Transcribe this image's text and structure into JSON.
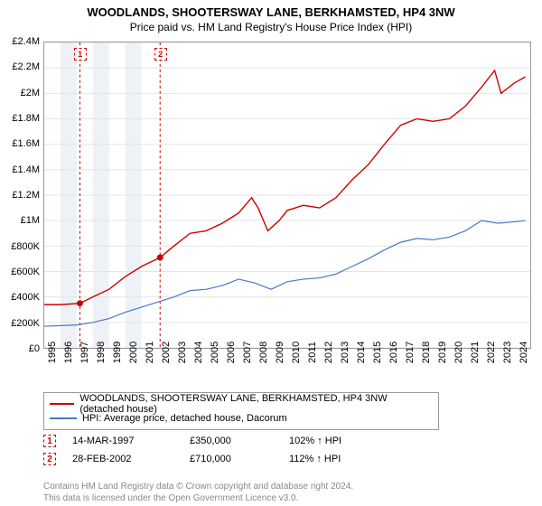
{
  "title": "WOODLANDS, SHOOTERSWAY LANE, BERKHAMSTED, HP4 3NW",
  "subtitle": "Price paid vs. HM Land Registry's House Price Index (HPI)",
  "chart": {
    "type": "line",
    "background_color": "#ffffff",
    "grid_color": "#e4e4e4",
    "axis_color": "#999999",
    "x_range": [
      1995,
      2025
    ],
    "y_range": [
      0,
      2400000
    ],
    "y_ticks": [
      0,
      200000,
      400000,
      600000,
      800000,
      1000000,
      1200000,
      1400000,
      1600000,
      1800000,
      2000000,
      2200000,
      2400000
    ],
    "y_tick_labels": [
      "£0",
      "£200K",
      "£400K",
      "£600K",
      "£800K",
      "£1M",
      "£1.2M",
      "£1.4M",
      "£1.6M",
      "£1.8M",
      "£2M",
      "£2.2M",
      "£2.4M"
    ],
    "x_ticks": [
      1995,
      1996,
      1997,
      1998,
      1999,
      2000,
      2001,
      2002,
      2003,
      2004,
      2005,
      2006,
      2007,
      2008,
      2009,
      2010,
      2011,
      2012,
      2013,
      2014,
      2015,
      2016,
      2017,
      2018,
      2019,
      2020,
      2021,
      2022,
      2023,
      2024
    ],
    "band_color": "#eef2f6",
    "bands": [
      [
        1996,
        1997
      ],
      [
        1998,
        1999
      ],
      [
        2000,
        2001
      ]
    ],
    "series": [
      {
        "name": "WOODLANDS, SHOOTERSWAY LANE, BERKHAMSTED, HP4 3NW (detached house)",
        "color": "#cc0000",
        "stroke_width": 1.4,
        "points": [
          [
            1995,
            340000
          ],
          [
            1996,
            340000
          ],
          [
            1997.2,
            350000
          ],
          [
            1998,
            400000
          ],
          [
            1999,
            460000
          ],
          [
            2000,
            560000
          ],
          [
            2001,
            640000
          ],
          [
            2002.15,
            710000
          ],
          [
            2003,
            800000
          ],
          [
            2004,
            900000
          ],
          [
            2005,
            920000
          ],
          [
            2006,
            980000
          ],
          [
            2007,
            1060000
          ],
          [
            2007.8,
            1180000
          ],
          [
            2008.2,
            1100000
          ],
          [
            2008.8,
            920000
          ],
          [
            2009.5,
            1000000
          ],
          [
            2010,
            1080000
          ],
          [
            2011,
            1120000
          ],
          [
            2012,
            1100000
          ],
          [
            2013,
            1180000
          ],
          [
            2014,
            1320000
          ],
          [
            2015,
            1440000
          ],
          [
            2016,
            1600000
          ],
          [
            2017,
            1750000
          ],
          [
            2018,
            1800000
          ],
          [
            2019,
            1780000
          ],
          [
            2020,
            1800000
          ],
          [
            2021,
            1900000
          ],
          [
            2022,
            2050000
          ],
          [
            2022.8,
            2180000
          ],
          [
            2023.2,
            2000000
          ],
          [
            2024,
            2080000
          ],
          [
            2024.7,
            2130000
          ]
        ]
      },
      {
        "name": "HPI: Average price, detached house, Dacorum",
        "color": "#4a76c6",
        "stroke_width": 1.2,
        "points": [
          [
            1995,
            170000
          ],
          [
            1996,
            175000
          ],
          [
            1997,
            180000
          ],
          [
            1998,
            200000
          ],
          [
            1999,
            230000
          ],
          [
            2000,
            280000
          ],
          [
            2001,
            320000
          ],
          [
            2002,
            360000
          ],
          [
            2003,
            400000
          ],
          [
            2004,
            450000
          ],
          [
            2005,
            460000
          ],
          [
            2006,
            490000
          ],
          [
            2007,
            540000
          ],
          [
            2008,
            510000
          ],
          [
            2009,
            460000
          ],
          [
            2010,
            520000
          ],
          [
            2011,
            540000
          ],
          [
            2012,
            550000
          ],
          [
            2013,
            580000
          ],
          [
            2014,
            640000
          ],
          [
            2015,
            700000
          ],
          [
            2016,
            770000
          ],
          [
            2017,
            830000
          ],
          [
            2018,
            860000
          ],
          [
            2019,
            850000
          ],
          [
            2020,
            870000
          ],
          [
            2021,
            920000
          ],
          [
            2022,
            1000000
          ],
          [
            2023,
            980000
          ],
          [
            2024,
            990000
          ],
          [
            2024.7,
            1000000
          ]
        ]
      }
    ],
    "markers": [
      {
        "label": "1",
        "x": 1997.2,
        "y": 350000,
        "color": "#cc0000"
      },
      {
        "label": "2",
        "x": 2002.15,
        "y": 710000,
        "color": "#cc0000"
      }
    ]
  },
  "legend": {
    "rows": [
      {
        "color": "#cc0000",
        "label": "WOODLANDS, SHOOTERSWAY LANE, BERKHAMSTED, HP4 3NW (detached house)"
      },
      {
        "color": "#4a76c6",
        "label": "HPI: Average price, detached house, Dacorum"
      }
    ]
  },
  "marker_table": {
    "rows": [
      {
        "num": "1",
        "color": "#cc0000",
        "date": "14-MAR-1997",
        "price": "£350,000",
        "pct": "102% ↑ HPI"
      },
      {
        "num": "2",
        "color": "#cc0000",
        "date": "28-FEB-2002",
        "price": "£710,000",
        "pct": "112% ↑ HPI"
      }
    ]
  },
  "footnote": {
    "line1": "Contains HM Land Registry data © Crown copyright and database right 2024.",
    "line2": "This data is licensed under the Open Government Licence v3.0."
  },
  "fonts": {
    "title_size": 13,
    "subtitle_size": 12,
    "tick_size": 11,
    "legend_size": 11,
    "footnote_size": 10
  }
}
